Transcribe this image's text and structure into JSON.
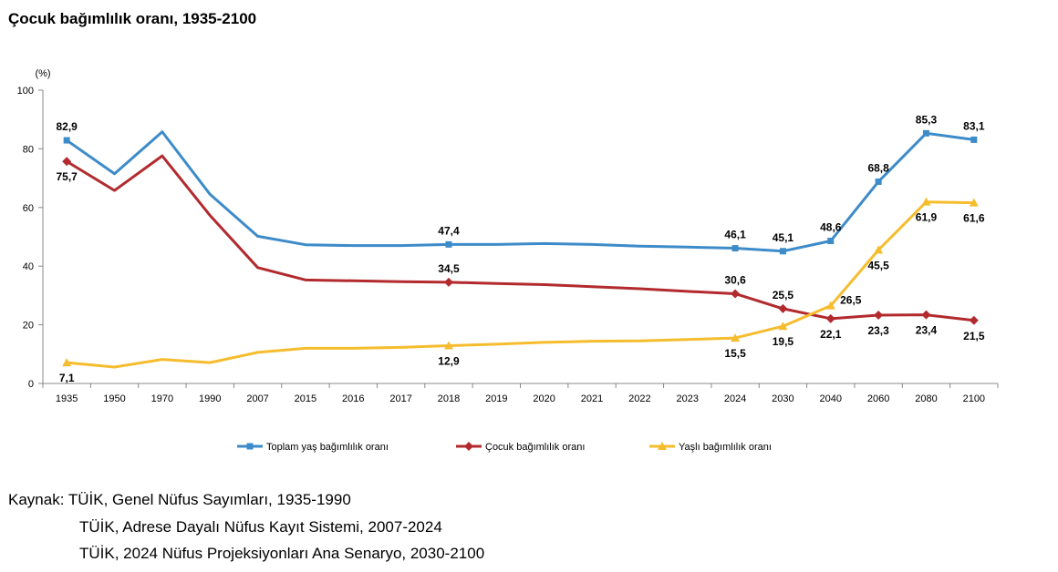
{
  "title": "Çocuk bağımlılık oranı, 1935-2100",
  "chart_data": {
    "type": "line",
    "title": "Çocuk bağımlılık oranı, 1935-2100",
    "ylabel": "(%)",
    "xlabel": "",
    "ylim": [
      0,
      100
    ],
    "yticks": [
      0,
      20,
      40,
      60,
      80,
      100
    ],
    "grid": false,
    "legend_position": "bottom",
    "categories": [
      "1935",
      "1950",
      "1970",
      "1990",
      "2007",
      "2015",
      "2016",
      "2017",
      "2018",
      "2019",
      "2020",
      "2021",
      "2022",
      "2023",
      "2024",
      "2030",
      "2040",
      "2060",
      "2080",
      "2100"
    ],
    "series": [
      {
        "name": "Toplam yaş bağımlılık oranı",
        "color": "#3d8bc9",
        "marker": "square",
        "values": [
          82.9,
          71.5,
          85.8,
          64.5,
          50.2,
          47.3,
          47.0,
          47.0,
          47.4,
          47.4,
          47.7,
          47.4,
          46.8,
          46.5,
          46.1,
          45.1,
          48.6,
          68.8,
          85.3,
          83.1
        ],
        "labels": [
          "82,9",
          "",
          "",
          "",
          "",
          "",
          "",
          "",
          "47,4",
          "",
          "",
          "",
          "",
          "",
          "46,1",
          "45,1",
          "48,6",
          "68,8",
          "85,3",
          "83,1"
        ]
      },
      {
        "name": "Çocuk bağımlılık oranı",
        "color": "#b22a2e",
        "marker": "diamond",
        "values": [
          75.7,
          65.8,
          77.6,
          57.3,
          39.5,
          35.3,
          35.0,
          34.7,
          34.5,
          34.1,
          33.7,
          33.0,
          32.3,
          31.4,
          30.6,
          25.5,
          22.1,
          23.3,
          23.4,
          21.5
        ],
        "labels": [
          "75,7",
          "",
          "",
          "",
          "",
          "",
          "",
          "",
          "34,5",
          "",
          "",
          "",
          "",
          "",
          "30,6",
          "25,5",
          "22,1",
          "23,3",
          "23,4",
          "21,5"
        ]
      },
      {
        "name": "Yaşlı bağımlılık oranı",
        "color": "#f5bd2e",
        "marker": "triangle",
        "values": [
          7.1,
          5.6,
          8.2,
          7.1,
          10.6,
          12.0,
          12.0,
          12.3,
          12.9,
          13.4,
          14.0,
          14.4,
          14.5,
          15.0,
          15.5,
          19.5,
          26.5,
          45.5,
          61.9,
          61.6
        ],
        "labels": [
          "7,1",
          "",
          "",
          "",
          "",
          "",
          "",
          "",
          "12,9",
          "",
          "",
          "",
          "",
          "",
          "15,5",
          "19,5",
          "26,5",
          "45,5",
          "61,9",
          "61,6"
        ]
      }
    ]
  },
  "source": {
    "prefix": "Kaynak:",
    "lines": [
      "TÜİK, Genel Nüfus Sayımları, 1935-1990",
      "TÜİK, Adrese Dayalı Nüfus Kayıt Sistemi, 2007-2024",
      "TÜİK, 2024 Nüfus Projeksiyonları Ana Senaryo, 2030-2100"
    ]
  }
}
